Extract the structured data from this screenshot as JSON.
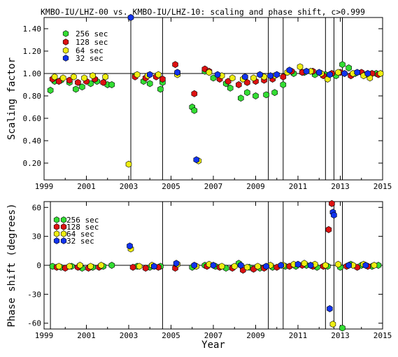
{
  "chart_data": [
    {
      "type": "scatter",
      "title": "KMBO-IU/LHZ-00 vs. KMBO-IU/LHZ-10: scaling and phase shift, c>0.999",
      "xlabel": "",
      "ylabel": "Scaling factor",
      "xlim": [
        1999,
        2015
      ],
      "ylim": [
        0.05,
        1.5
      ],
      "xticks": [
        "1999",
        "2001",
        "2003",
        "2005",
        "2007",
        "2009",
        "2011",
        "2013",
        "2015"
      ],
      "yticks": [
        "0.20",
        "0.40",
        "0.60",
        "0.80",
        "1.00",
        "1.20",
        "1.40"
      ],
      "legend_position": "top-left",
      "reference_line": 1.0,
      "event_lines": [
        2003.1,
        2004.6,
        2009.6,
        2010.3,
        2012.3,
        2012.7,
        2013.1
      ],
      "series": [
        {
          "name": "256 sec",
          "color": "#33dd33",
          "points": [
            [
              1999.3,
              0.85
            ],
            [
              1999.5,
              0.93
            ],
            [
              1999.8,
              0.94
            ],
            [
              2000.2,
              0.92
            ],
            [
              2000.5,
              0.86
            ],
            [
              2000.8,
              0.88
            ],
            [
              2001.2,
              0.91
            ],
            [
              2001.5,
              0.93
            ],
            [
              2002.0,
              0.9
            ],
            [
              2002.2,
              0.9
            ],
            [
              2003.3,
              0.98
            ],
            [
              2003.7,
              0.93
            ],
            [
              2004.0,
              0.91
            ],
            [
              2004.5,
              0.86
            ],
            [
              2004.6,
              0.92
            ],
            [
              2006.0,
              0.7
            ],
            [
              2006.1,
              0.67
            ],
            [
              2006.6,
              1.02
            ],
            [
              2007.0,
              0.96
            ],
            [
              2007.6,
              0.91
            ],
            [
              2007.8,
              0.87
            ],
            [
              2008.3,
              0.78
            ],
            [
              2008.6,
              0.83
            ],
            [
              2009.0,
              0.8
            ],
            [
              2009.5,
              0.81
            ],
            [
              2009.9,
              0.83
            ],
            [
              2010.3,
              0.9
            ],
            [
              2010.8,
              1.0
            ],
            [
              2011.3,
              1.01
            ],
            [
              2011.8,
              0.99
            ],
            [
              2012.3,
              0.99
            ],
            [
              2012.8,
              0.98
            ],
            [
              2013.1,
              1.08
            ],
            [
              2013.4,
              1.05
            ],
            [
              2013.7,
              1.0
            ],
            [
              2014.2,
              0.99
            ],
            [
              2014.7,
              1.0
            ]
          ]
        },
        {
          "name": "128 sec",
          "color": "#dd1111",
          "points": [
            [
              1999.4,
              0.95
            ],
            [
              1999.7,
              0.93
            ],
            [
              2000.2,
              0.94
            ],
            [
              2000.6,
              0.92
            ],
            [
              2001.0,
              0.93
            ],
            [
              2001.4,
              0.95
            ],
            [
              2001.8,
              0.92
            ],
            [
              2003.3,
              0.97
            ],
            [
              2003.8,
              0.96
            ],
            [
              2004.3,
              0.97
            ],
            [
              2004.6,
              0.95
            ],
            [
              2005.2,
              1.08
            ],
            [
              2005.3,
              1.0
            ],
            [
              2006.1,
              0.82
            ],
            [
              2006.6,
              1.04
            ],
            [
              2006.8,
              1.02
            ],
            [
              2007.3,
              0.95
            ],
            [
              2007.7,
              0.93
            ],
            [
              2008.2,
              0.9
            ],
            [
              2008.6,
              0.92
            ],
            [
              2009.0,
              0.93
            ],
            [
              2009.4,
              0.94
            ],
            [
              2009.8,
              0.95
            ],
            [
              2010.3,
              0.97
            ],
            [
              2010.7,
              1.02
            ],
            [
              2011.2,
              1.01
            ],
            [
              2011.7,
              1.02
            ],
            [
              2012.2,
              0.98
            ],
            [
              2012.6,
              1.0
            ],
            [
              2013.0,
              1.01
            ],
            [
              2013.5,
              0.98
            ],
            [
              2014.0,
              1.01
            ],
            [
              2014.5,
              1.0
            ],
            [
              2014.8,
              0.99
            ]
          ]
        },
        {
          "name": "64 sec",
          "color": "#eeee11",
          "points": [
            [
              1999.5,
              0.97
            ],
            [
              1999.9,
              0.96
            ],
            [
              2000.4,
              0.97
            ],
            [
              2000.9,
              0.96
            ],
            [
              2001.3,
              0.98
            ],
            [
              2001.9,
              0.97
            ],
            [
              2003.0,
              0.19
            ],
            [
              2003.4,
              0.99
            ],
            [
              2003.9,
              0.98
            ],
            [
              2004.4,
              0.99
            ],
            [
              2005.3,
              0.99
            ],
            [
              2006.3,
              0.22
            ],
            [
              2006.8,
              1.01
            ],
            [
              2007.4,
              0.98
            ],
            [
              2007.9,
              0.96
            ],
            [
              2008.4,
              0.95
            ],
            [
              2008.9,
              0.96
            ],
            [
              2009.4,
              0.97
            ],
            [
              2009.9,
              0.98
            ],
            [
              2010.5,
              1.01
            ],
            [
              2011.1,
              1.06
            ],
            [
              2011.6,
              1.02
            ],
            [
              2012.1,
              1.0
            ],
            [
              2012.4,
              0.95
            ],
            [
              2012.9,
              1.01
            ],
            [
              2013.6,
              1.0
            ],
            [
              2014.1,
              0.98
            ],
            [
              2014.4,
              0.96
            ],
            [
              2014.9,
              1.0
            ]
          ]
        },
        {
          "name": "32 sec",
          "color": "#1133ee",
          "points": [
            [
              2003.1,
              1.5
            ],
            [
              2004.0,
              0.99
            ],
            [
              2005.3,
              1.01
            ],
            [
              2006.2,
              0.23
            ],
            [
              2007.2,
              0.99
            ],
            [
              2008.5,
              0.97
            ],
            [
              2009.2,
              0.99
            ],
            [
              2009.7,
              0.98
            ],
            [
              2010.0,
              0.99
            ],
            [
              2010.6,
              1.03
            ],
            [
              2011.4,
              1.02
            ],
            [
              2012.0,
              1.01
            ],
            [
              2012.5,
              0.99
            ],
            [
              2013.2,
              1.0
            ],
            [
              2013.8,
              1.01
            ],
            [
              2014.3,
              1.0
            ]
          ]
        }
      ]
    },
    {
      "type": "scatter",
      "title": "",
      "xlabel": "Year",
      "ylabel": "Phase shift (degrees)",
      "xlim": [
        1999,
        2015
      ],
      "ylim": [
        -66,
        66
      ],
      "xticks": [
        "1999",
        "2001",
        "2003",
        "2005",
        "2007",
        "2009",
        "2011",
        "2013",
        "2015"
      ],
      "yticks": [
        "-60",
        "-30",
        "0",
        "30",
        "60"
      ],
      "legend_position": "top-left",
      "reference_line": 0,
      "event_lines": [
        1999.3,
        2004.6,
        2009.6,
        2010.3,
        2012.3,
        2012.7,
        2013.1
      ],
      "series": [
        {
          "name": "256 sec",
          "color": "#33dd33",
          "points": [
            [
              1999.4,
              -1
            ],
            [
              1999.8,
              -2
            ],
            [
              2000.3,
              -1
            ],
            [
              2000.8,
              -3
            ],
            [
              2001.3,
              -2
            ],
            [
              2001.8,
              -1
            ],
            [
              2002.2,
              0
            ],
            [
              2003.4,
              -1
            ],
            [
              2004.0,
              -2
            ],
            [
              2004.5,
              -1
            ],
            [
              2006.0,
              -2
            ],
            [
              2006.6,
              0
            ],
            [
              2007.1,
              -1
            ],
            [
              2007.6,
              -3
            ],
            [
              2008.2,
              2
            ],
            [
              2008.7,
              -2
            ],
            [
              2009.2,
              -3
            ],
            [
              2009.8,
              -2
            ],
            [
              2010.4,
              -1
            ],
            [
              2010.9,
              -1
            ],
            [
              2011.4,
              0
            ],
            [
              2011.9,
              -2
            ],
            [
              2012.4,
              -1
            ],
            [
              2013.0,
              -2
            ],
            [
              2013.1,
              -65
            ],
            [
              2013.5,
              1
            ],
            [
              2014.0,
              0
            ],
            [
              2014.5,
              -1
            ],
            [
              2014.8,
              0
            ]
          ]
        },
        {
          "name": "128 sec",
          "color": "#dd1111",
          "points": [
            [
              1999.6,
              -2
            ],
            [
              2000.0,
              -3
            ],
            [
              2000.6,
              -2
            ],
            [
              2001.1,
              -3
            ],
            [
              2001.6,
              -2
            ],
            [
              2003.2,
              -2
            ],
            [
              2003.8,
              -3
            ],
            [
              2004.4,
              -2
            ],
            [
              2005.2,
              -3
            ],
            [
              2006.7,
              -1
            ],
            [
              2007.3,
              -2
            ],
            [
              2007.9,
              -3
            ],
            [
              2008.4,
              -5
            ],
            [
              2008.9,
              -4
            ],
            [
              2009.4,
              -3
            ],
            [
              2010.0,
              -2
            ],
            [
              2010.6,
              -1
            ],
            [
              2011.2,
              0
            ],
            [
              2011.7,
              -1
            ],
            [
              2012.2,
              -1
            ],
            [
              2012.45,
              37
            ],
            [
              2012.6,
              64
            ],
            [
              2013.3,
              -1
            ],
            [
              2013.8,
              -2
            ],
            [
              2014.3,
              -1
            ]
          ]
        },
        {
          "name": "64 sec",
          "color": "#eeee11",
          "points": [
            [
              1999.7,
              -1
            ],
            [
              2000.2,
              -1
            ],
            [
              2000.7,
              0
            ],
            [
              2001.2,
              -1
            ],
            [
              2001.7,
              0
            ],
            [
              2003.1,
              17
            ],
            [
              2003.5,
              -1
            ],
            [
              2004.1,
              0
            ],
            [
              2005.3,
              1
            ],
            [
              2006.2,
              -1
            ],
            [
              2006.8,
              1
            ],
            [
              2007.4,
              -1
            ],
            [
              2008.0,
              -1
            ],
            [
              2008.6,
              -2
            ],
            [
              2009.1,
              -1
            ],
            [
              2009.7,
              0
            ],
            [
              2010.3,
              0
            ],
            [
              2010.8,
              1
            ],
            [
              2011.3,
              2
            ],
            [
              2011.8,
              1
            ],
            [
              2012.3,
              0
            ],
            [
              2012.65,
              -61
            ],
            [
              2012.9,
              1
            ],
            [
              2013.6,
              0
            ],
            [
              2014.1,
              1
            ],
            [
              2014.6,
              0
            ]
          ]
        },
        {
          "name": "32 sec",
          "color": "#1133ee",
          "points": [
            [
              2003.05,
              20
            ],
            [
              2004.2,
              -1
            ],
            [
              2005.25,
              2
            ],
            [
              2006.1,
              0
            ],
            [
              2007.0,
              0
            ],
            [
              2008.3,
              0
            ],
            [
              2009.5,
              -1
            ],
            [
              2010.2,
              0
            ],
            [
              2011.0,
              1
            ],
            [
              2011.6,
              0
            ],
            [
              2012.5,
              -45
            ],
            [
              2012.65,
              55
            ],
            [
              2012.7,
              52
            ],
            [
              2013.4,
              0
            ],
            [
              2014.2,
              0
            ]
          ]
        }
      ]
    }
  ]
}
